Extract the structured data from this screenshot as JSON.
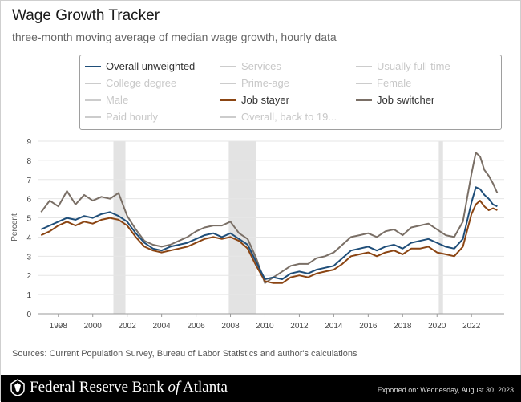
{
  "header": {
    "title": "Wage Growth Tracker",
    "subtitle": "three-month moving average of median wage growth, hourly data"
  },
  "legend": {
    "items": [
      {
        "label": "Overall unweighted",
        "color": "#1f4e79",
        "active": true
      },
      {
        "label": "Services",
        "color": "#cccccc",
        "active": false
      },
      {
        "label": "Usually full-time",
        "color": "#cccccc",
        "active": false
      },
      {
        "label": "College degree",
        "color": "#cccccc",
        "active": false
      },
      {
        "label": "Prime-age",
        "color": "#cccccc",
        "active": false
      },
      {
        "label": "Female",
        "color": "#cccccc",
        "active": false
      },
      {
        "label": "Male",
        "color": "#cccccc",
        "active": false
      },
      {
        "label": "Job stayer",
        "color": "#8b4513",
        "active": true
      },
      {
        "label": "Job switcher",
        "color": "#7a6f66",
        "active": true
      },
      {
        "label": "Paid hourly",
        "color": "#cccccc",
        "active": false
      },
      {
        "label": "Overall, back to 19...",
        "color": "#cccccc",
        "active": false
      }
    ]
  },
  "chart_data": {
    "type": "line",
    "title": "Wage Growth Tracker",
    "subtitle": "three-month moving average of median wage growth, hourly data",
    "ylabel": "Percent",
    "xlabel": "",
    "xlim": [
      1996.8,
      2023.9
    ],
    "ylim": [
      0,
      9
    ],
    "y_ticks": [
      "0",
      "1",
      "2",
      "3",
      "4",
      "5",
      "6",
      "7",
      "8",
      "9"
    ],
    "x_ticks": [
      "1998",
      "2000",
      "2002",
      "2004",
      "2006",
      "2008",
      "2010",
      "2012",
      "2014",
      "2016",
      "2018",
      "2020",
      "2022"
    ],
    "grid": "horizontal",
    "recessions": [
      [
        2001.2,
        2001.9
      ],
      [
        2007.9,
        2009.5
      ],
      [
        2020.1,
        2020.35
      ]
    ],
    "series": [
      {
        "name": "Overall unweighted",
        "color": "#1f4e79",
        "x": [
          1997.0,
          1997.5,
          1998.0,
          1998.5,
          1999.0,
          1999.5,
          2000.0,
          2000.5,
          2001.0,
          2001.5,
          2002.0,
          2002.5,
          2003.0,
          2003.5,
          2004.0,
          2004.5,
          2005.0,
          2005.5,
          2006.0,
          2006.5,
          2007.0,
          2007.5,
          2008.0,
          2008.5,
          2009.0,
          2009.5,
          2010.0,
          2010.5,
          2011.0,
          2011.5,
          2012.0,
          2012.5,
          2013.0,
          2013.5,
          2014.0,
          2014.5,
          2015.0,
          2015.5,
          2016.0,
          2016.5,
          2017.0,
          2017.5,
          2018.0,
          2018.5,
          2019.0,
          2019.5,
          2020.0,
          2020.5,
          2021.0,
          2021.5,
          2022.0,
          2022.25,
          2022.5,
          2022.75,
          2023.0,
          2023.25,
          2023.5
        ],
        "values": [
          4.4,
          4.6,
          4.8,
          5.0,
          4.9,
          5.1,
          5.0,
          5.2,
          5.3,
          5.1,
          4.8,
          4.2,
          3.7,
          3.4,
          3.3,
          3.5,
          3.6,
          3.7,
          3.9,
          4.1,
          4.2,
          4.0,
          4.2,
          3.9,
          3.6,
          2.7,
          1.8,
          1.9,
          1.8,
          2.1,
          2.2,
          2.1,
          2.3,
          2.4,
          2.5,
          2.9,
          3.3,
          3.4,
          3.5,
          3.3,
          3.5,
          3.6,
          3.4,
          3.7,
          3.8,
          3.9,
          3.7,
          3.5,
          3.4,
          3.9,
          5.8,
          6.6,
          6.5,
          6.2,
          6.0,
          5.7,
          5.6
        ]
      },
      {
        "name": "Job stayer",
        "color": "#8b4513",
        "x": [
          1997.0,
          1997.5,
          1998.0,
          1998.5,
          1999.0,
          1999.5,
          2000.0,
          2000.5,
          2001.0,
          2001.5,
          2002.0,
          2002.5,
          2003.0,
          2003.5,
          2004.0,
          2004.5,
          2005.0,
          2005.5,
          2006.0,
          2006.5,
          2007.0,
          2007.5,
          2008.0,
          2008.5,
          2009.0,
          2009.5,
          2010.0,
          2010.5,
          2011.0,
          2011.5,
          2012.0,
          2012.5,
          2013.0,
          2013.5,
          2014.0,
          2014.5,
          2015.0,
          2015.5,
          2016.0,
          2016.5,
          2017.0,
          2017.5,
          2018.0,
          2018.5,
          2019.0,
          2019.5,
          2020.0,
          2020.5,
          2021.0,
          2021.5,
          2022.0,
          2022.25,
          2022.5,
          2022.75,
          2023.0,
          2023.25,
          2023.5
        ],
        "values": [
          4.1,
          4.3,
          4.6,
          4.8,
          4.6,
          4.8,
          4.7,
          4.9,
          5.0,
          4.9,
          4.6,
          4.0,
          3.5,
          3.3,
          3.2,
          3.3,
          3.4,
          3.5,
          3.7,
          3.9,
          4.0,
          3.9,
          4.0,
          3.8,
          3.4,
          2.5,
          1.7,
          1.6,
          1.6,
          1.9,
          2.0,
          1.9,
          2.1,
          2.2,
          2.3,
          2.6,
          3.0,
          3.1,
          3.2,
          3.0,
          3.2,
          3.3,
          3.1,
          3.4,
          3.4,
          3.5,
          3.2,
          3.1,
          3.0,
          3.5,
          5.2,
          5.7,
          5.9,
          5.6,
          5.4,
          5.5,
          5.4
        ]
      },
      {
        "name": "Job switcher",
        "color": "#7a6f66",
        "x": [
          1997.0,
          1997.5,
          1998.0,
          1998.5,
          1999.0,
          1999.5,
          2000.0,
          2000.5,
          2001.0,
          2001.5,
          2002.0,
          2002.5,
          2003.0,
          2003.5,
          2004.0,
          2004.5,
          2005.0,
          2005.5,
          2006.0,
          2006.5,
          2007.0,
          2007.5,
          2008.0,
          2008.5,
          2009.0,
          2009.5,
          2010.0,
          2010.5,
          2011.0,
          2011.5,
          2012.0,
          2012.5,
          2013.0,
          2013.5,
          2014.0,
          2014.5,
          2015.0,
          2015.5,
          2016.0,
          2016.5,
          2017.0,
          2017.5,
          2018.0,
          2018.5,
          2019.0,
          2019.5,
          2020.0,
          2020.5,
          2021.0,
          2021.5,
          2022.0,
          2022.25,
          2022.5,
          2022.75,
          2023.0,
          2023.25,
          2023.5
        ],
        "values": [
          5.3,
          5.9,
          5.6,
          6.4,
          5.7,
          6.2,
          5.9,
          6.1,
          6.0,
          6.3,
          5.1,
          4.4,
          3.8,
          3.6,
          3.5,
          3.6,
          3.8,
          4.0,
          4.3,
          4.5,
          4.6,
          4.6,
          4.8,
          4.2,
          3.9,
          2.9,
          1.6,
          1.9,
          2.2,
          2.5,
          2.6,
          2.6,
          2.9,
          3.0,
          3.2,
          3.6,
          4.0,
          4.1,
          4.2,
          4.0,
          4.3,
          4.4,
          4.1,
          4.5,
          4.6,
          4.7,
          4.4,
          4.1,
          4.0,
          4.8,
          7.3,
          8.4,
          8.2,
          7.5,
          7.2,
          6.8,
          6.3
        ]
      }
    ]
  },
  "sources": "Sources: Current Population Survey, Bureau of Labor Statistics and author's calculations",
  "footer": {
    "bank_name_1": "Federal Reserve Bank ",
    "bank_name_of": "of",
    "bank_name_2": " Atlanta",
    "exported": "Exported on: Wednesday, August 30, 2023"
  }
}
